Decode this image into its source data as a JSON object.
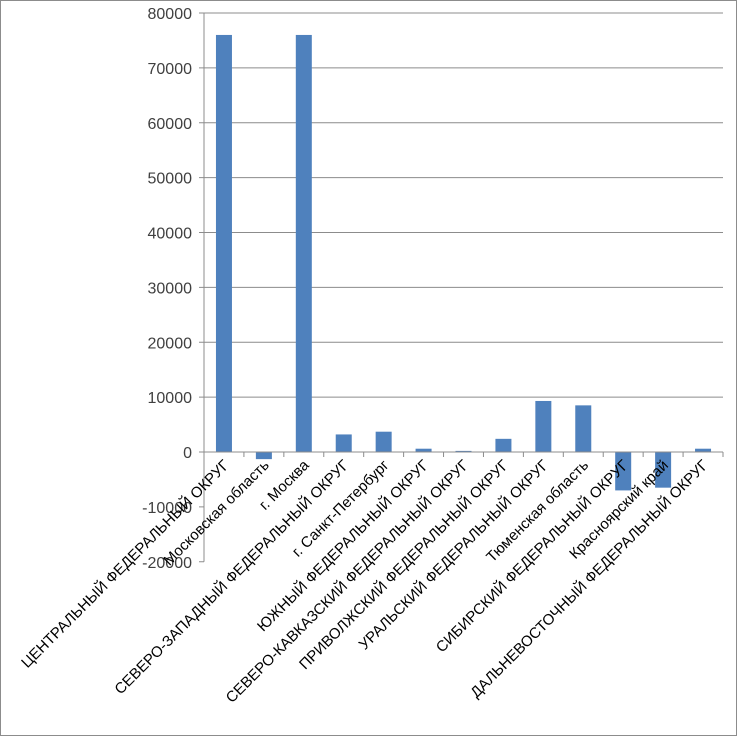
{
  "chart_data": {
    "type": "bar",
    "categories": [
      "ЦЕНТРАЛЬНЫЙ ФЕДЕРАЛЬНЫЙ ОКРУГ",
      "Московская область",
      "г. Москва",
      "СЕВЕРО-ЗАПАДНЫЙ ФЕДЕРАЛЬНЫЙ ОКРУГ",
      "г. Санкт-Петербург",
      "ЮЖНЫЙ ФЕДЕРАЛЬНЫЙ ОКРУГ",
      "СЕВЕРО-КАВКАЗСКИЙ ФЕДЕРАЛЬНЫЙ ОКРУГ",
      "ПРИВОЛЖСКИЙ ФЕДЕРАЛЬНЫЙ ОКРУГ",
      "УРАЛЬСКИЙ ФЕДЕРАЛЬНЫЙ ОКРУГ",
      "Тюменская область",
      "СИБИРСКИЙ ФЕДЕРАЛЬНЫЙ ОКРУГ",
      "Красноярский край",
      "ДАЛЬНЕВОСТОЧНЫЙ ФЕДЕРАЛЬНЫЙ ОКРУГ"
    ],
    "values": [
      76000,
      -1300,
      76000,
      3200,
      3700,
      600,
      200,
      2400,
      9300,
      8500,
      -7000,
      -6500,
      600
    ],
    "yticks": [
      "80000",
      "70000",
      "60000",
      "50000",
      "40000",
      "30000",
      "20000",
      "10000",
      "0",
      "-10000",
      "-20000"
    ],
    "ylim": [
      -20000,
      80000
    ],
    "grid": true,
    "legend": "none",
    "bar_color": "#4f81bd",
    "title": "",
    "xlabel": "",
    "ylabel": ""
  }
}
